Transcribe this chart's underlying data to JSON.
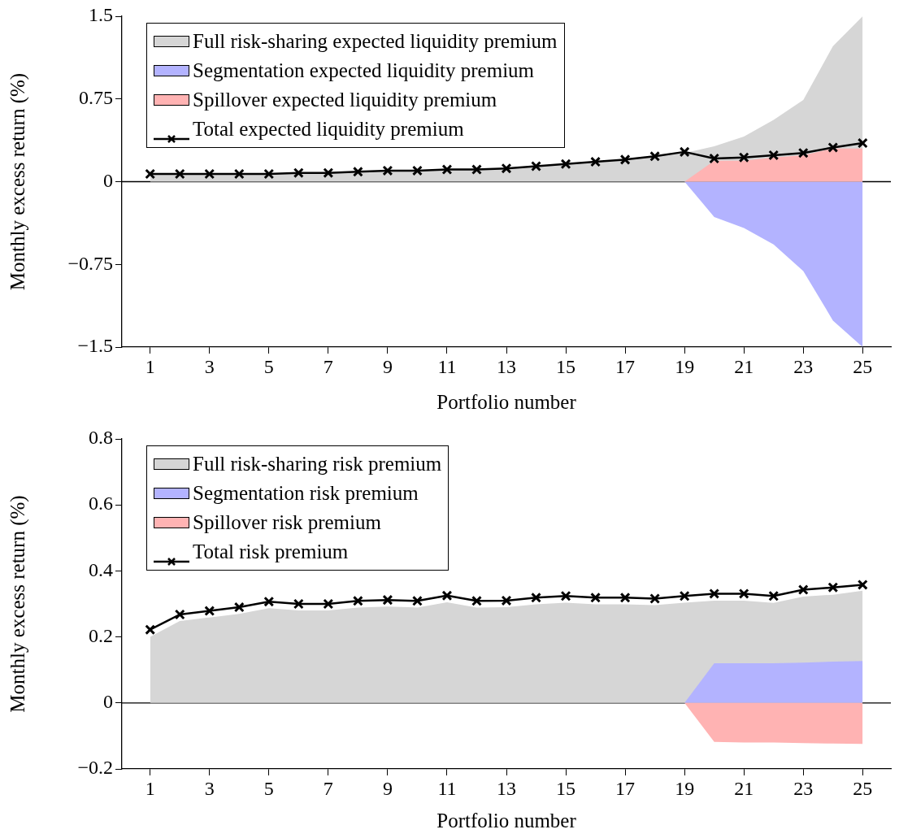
{
  "chart_data": [
    {
      "type": "area",
      "xlabel": "Portfolio number",
      "ylabel": "Monthly excess return (%)",
      "x": [
        1,
        2,
        3,
        4,
        5,
        6,
        7,
        8,
        9,
        10,
        11,
        12,
        13,
        14,
        15,
        16,
        17,
        18,
        19,
        20,
        21,
        22,
        23,
        24,
        25
      ],
      "xlim": [
        0.05,
        25.95
      ],
      "xticks": [
        1,
        3,
        5,
        7,
        9,
        11,
        13,
        15,
        17,
        19,
        21,
        23,
        25
      ],
      "ylim": [
        -1.5,
        1.5
      ],
      "yticks": [
        {
          "value": -1.5,
          "label": "−1.5"
        },
        {
          "value": -0.75,
          "label": "−0.75"
        },
        0,
        0.75,
        1.5
      ],
      "grid": false,
      "legend": "top left",
      "ref_lines": [
        {
          "axis": "y",
          "value": 0,
          "color": "#000000"
        }
      ],
      "series": [
        {
          "name": "Full risk-sharing expected liquidity premium",
          "type": "area",
          "color": "#d6d6d6",
          "values": [
            0.07,
            0.07,
            0.07,
            0.07,
            0.07,
            0.08,
            0.08,
            0.09,
            0.1,
            0.1,
            0.11,
            0.11,
            0.12,
            0.14,
            0.16,
            0.18,
            0.2,
            0.23,
            0.26,
            0.32,
            0.41,
            0.56,
            0.74,
            1.23,
            1.5
          ]
        },
        {
          "name": "Segmentation expected liquidity premium",
          "type": "area",
          "color": "#b3b3ff",
          "values": [
            0,
            0,
            0,
            0,
            0,
            0,
            0,
            0,
            0,
            0,
            0,
            0,
            0,
            0,
            0,
            0,
            0,
            0,
            0,
            -0.32,
            -0.42,
            -0.57,
            -0.81,
            -1.26,
            -1.5
          ]
        },
        {
          "name": "Spillover expected liquidity premium",
          "type": "area",
          "color": "#ffb3b3",
          "values": [
            0,
            0,
            0,
            0,
            0,
            0,
            0,
            0,
            0,
            0,
            0,
            0,
            0,
            0,
            0,
            0,
            0,
            0,
            0,
            0.19,
            0.19,
            0.22,
            0.24,
            0.3,
            0.3
          ]
        },
        {
          "name": "Total expected liquidity premium",
          "type": "line",
          "marker": "cross",
          "color": "#000000",
          "values": [
            0.07,
            0.07,
            0.07,
            0.07,
            0.07,
            0.08,
            0.08,
            0.09,
            0.1,
            0.1,
            0.11,
            0.11,
            0.12,
            0.14,
            0.16,
            0.18,
            0.2,
            0.23,
            0.27,
            0.21,
            0.22,
            0.24,
            0.26,
            0.31,
            0.35
          ]
        }
      ]
    },
    {
      "type": "area",
      "xlabel": "Portfolio number",
      "ylabel": "Monthly excess return (%)",
      "x": [
        1,
        2,
        3,
        4,
        5,
        6,
        7,
        8,
        9,
        10,
        11,
        12,
        13,
        14,
        15,
        16,
        17,
        18,
        19,
        20,
        21,
        22,
        23,
        24,
        25
      ],
      "xlim": [
        0.05,
        25.95
      ],
      "xticks": [
        1,
        3,
        5,
        7,
        9,
        11,
        13,
        15,
        17,
        19,
        21,
        23,
        25
      ],
      "ylim": [
        -0.2,
        0.8
      ],
      "yticks": [
        {
          "value": -0.2,
          "label": "−0.2"
        },
        0,
        0.2,
        0.4,
        0.6,
        0.8
      ],
      "grid": false,
      "legend": "top left",
      "ref_lines": [
        {
          "axis": "y",
          "value": 0,
          "color": "#000000"
        }
      ],
      "series": [
        {
          "name": "Full risk-sharing risk premium",
          "type": "area",
          "color": "#d6d6d6",
          "values": [
            0.2,
            0.248,
            0.259,
            0.27,
            0.287,
            0.28,
            0.28,
            0.289,
            0.292,
            0.289,
            0.305,
            0.289,
            0.29,
            0.299,
            0.304,
            0.299,
            0.299,
            0.296,
            0.304,
            0.31,
            0.31,
            0.303,
            0.322,
            0.328,
            0.34
          ]
        },
        {
          "name": "Segmentation risk premium",
          "type": "area",
          "color": "#b3b3ff",
          "values": [
            0,
            0,
            0,
            0,
            0,
            0,
            0,
            0,
            0,
            0,
            0,
            0,
            0,
            0,
            0,
            0,
            0,
            0,
            0,
            0.12,
            0.12,
            0.12,
            0.122,
            0.125,
            0.127
          ]
        },
        {
          "name": "Spillover risk premium",
          "type": "area",
          "color": "#ffb3b3",
          "values": [
            0,
            0,
            0,
            0,
            0,
            0,
            0,
            0,
            0,
            0,
            0,
            0,
            0,
            0,
            0,
            0,
            0,
            0,
            0,
            -0.118,
            -0.12,
            -0.12,
            -0.122,
            -0.123,
            -0.124
          ]
        },
        {
          "name": "Total risk premium",
          "type": "line",
          "marker": "cross",
          "color": "#000000",
          "values": [
            0.222,
            0.268,
            0.279,
            0.29,
            0.307,
            0.3,
            0.3,
            0.309,
            0.312,
            0.309,
            0.325,
            0.309,
            0.31,
            0.319,
            0.324,
            0.319,
            0.319,
            0.316,
            0.324,
            0.331,
            0.331,
            0.324,
            0.343,
            0.35,
            0.358
          ]
        }
      ]
    }
  ]
}
